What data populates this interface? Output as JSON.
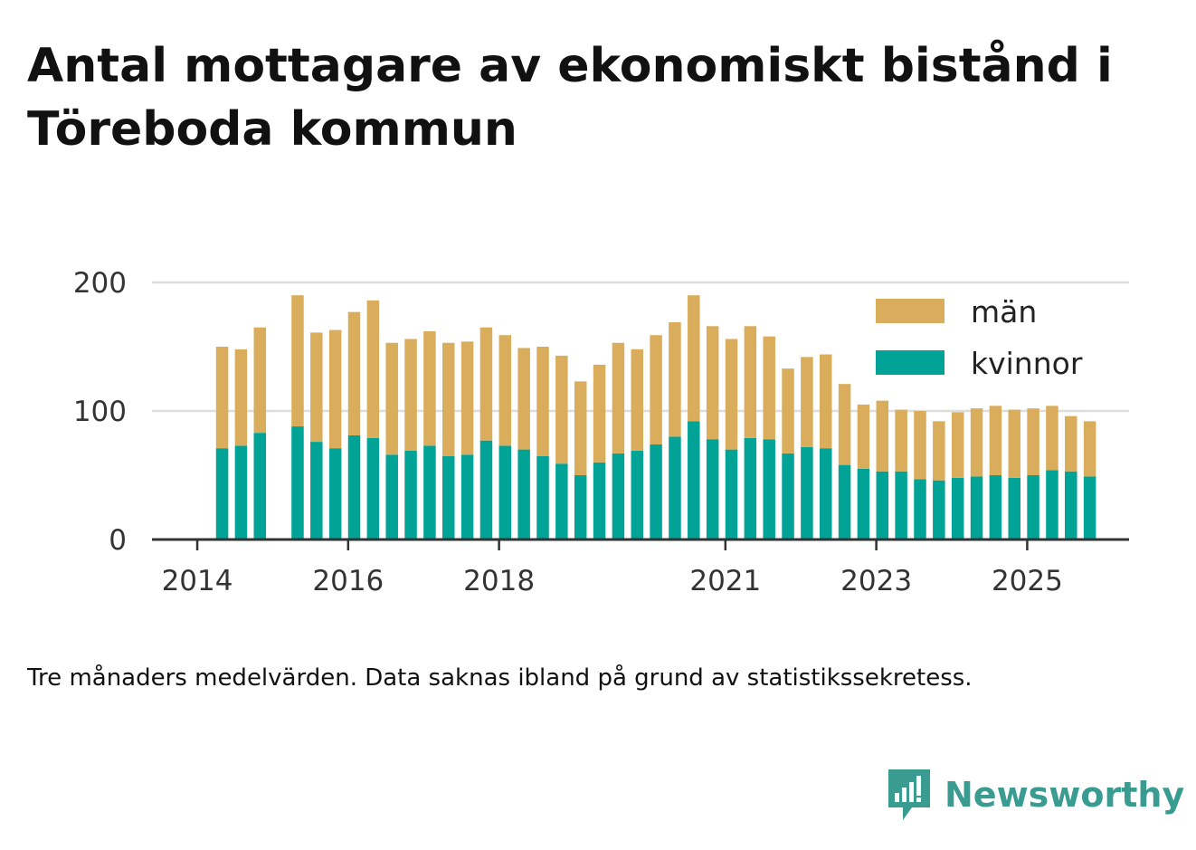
{
  "title": "Antal mottagare av ekonomiskt bistånd i Töreboda kommun",
  "note": "Tre månaders medelvärden. Data saknas ibland på grund av statistikssekretess.",
  "brand": "Newsworthy",
  "colors": {
    "men": "#d9ad5b",
    "women": "#00a396",
    "grid": "#dddddd",
    "axis": "#333333",
    "brand": "#3a9b91"
  },
  "chart_data": {
    "type": "bar",
    "stacked": true,
    "x": [
      2014.33,
      2014.58,
      2014.83,
      2015.33,
      2015.58,
      2015.83,
      2016.08,
      2016.33,
      2016.58,
      2016.83,
      2017.08,
      2017.33,
      2017.58,
      2017.83,
      2018.08,
      2018.33,
      2018.58,
      2018.83,
      2019.08,
      2019.33,
      2019.58,
      2019.83,
      2020.08,
      2020.33,
      2020.58,
      2020.83,
      2021.08,
      2021.33,
      2021.58,
      2021.83,
      2022.08,
      2022.33,
      2022.58,
      2022.83,
      2023.08,
      2023.33,
      2023.58,
      2023.83,
      2024.08,
      2024.33,
      2024.58,
      2024.83,
      2025.08,
      2025.33,
      2025.58,
      2025.83
    ],
    "series": [
      {
        "name": "kvinnor",
        "values": [
          71,
          73,
          83,
          88,
          76,
          71,
          81,
          79,
          66,
          69,
          73,
          65,
          66,
          77,
          73,
          70,
          65,
          59,
          50,
          60,
          67,
          69,
          74,
          80,
          92,
          78,
          70,
          79,
          78,
          67,
          72,
          71,
          58,
          55,
          53,
          53,
          47,
          46,
          48,
          49,
          50,
          48,
          50,
          54,
          53,
          49
        ]
      },
      {
        "name": "män",
        "values": [
          79,
          75,
          82,
          102,
          85,
          92,
          96,
          107,
          87,
          87,
          89,
          88,
          88,
          88,
          86,
          79,
          85,
          84,
          73,
          76,
          86,
          79,
          85,
          89,
          98,
          88,
          86,
          87,
          80,
          66,
          70,
          73,
          63,
          50,
          55,
          48,
          53,
          46,
          51,
          53,
          54,
          53,
          52,
          50,
          43,
          43
        ]
      }
    ],
    "legend": [
      "män",
      "kvinnor"
    ],
    "legend_position": "top-right",
    "xticks": [
      "2014",
      "2016",
      "2018",
      "2021",
      "2023",
      "2025"
    ],
    "xtick_values": [
      2014,
      2016,
      2018,
      2021,
      2023,
      2025
    ],
    "yticks": [
      "0",
      "100",
      "200"
    ],
    "ylim": [
      0,
      200
    ],
    "xlim": [
      2013.4,
      2026.35
    ],
    "grid": "horizontal"
  }
}
